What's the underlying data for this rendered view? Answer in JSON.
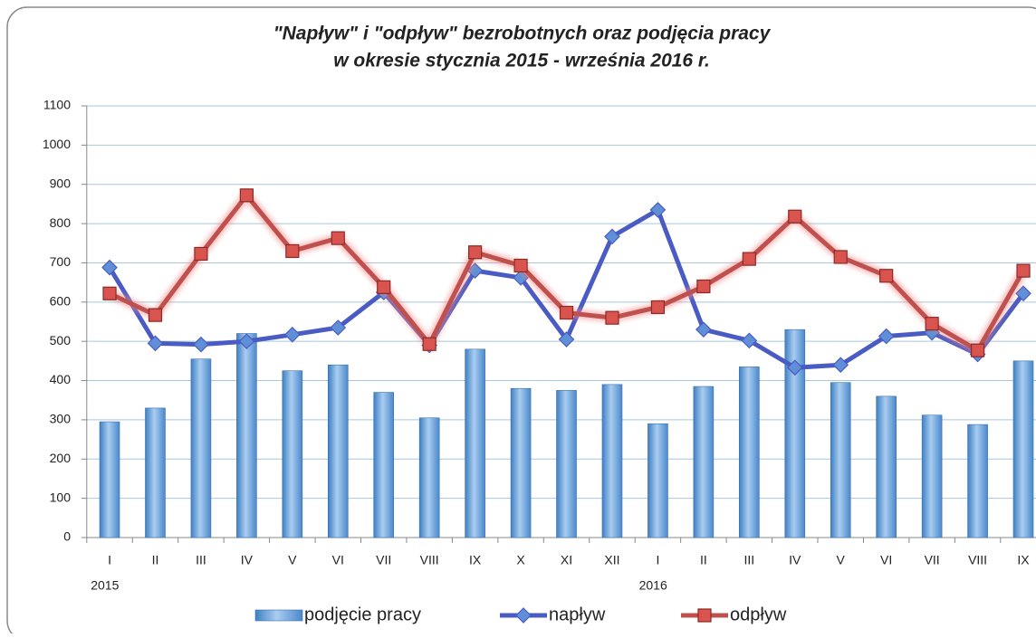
{
  "chart_data": {
    "type": "bar_line",
    "title": [
      "\"Napływ\" i  \"odpływ\" bezrobotnych oraz podjęcia pracy",
      "w okresie  stycznia 2015   - września 2016 r."
    ],
    "categories": [
      "I",
      "II",
      "III",
      "IV",
      "V",
      "VI",
      "VII",
      "VIII",
      "IX",
      "X",
      "XI",
      "XII",
      "I",
      "II",
      "III",
      "IV",
      "V",
      "VI",
      "VII",
      "VIII",
      "IX"
    ],
    "years": [
      "2015",
      null,
      null,
      null,
      null,
      null,
      null,
      null,
      null,
      null,
      null,
      null,
      "2016",
      null,
      null,
      null,
      null,
      null,
      null,
      null,
      null
    ],
    "series": [
      {
        "name": "podjęcie pracy",
        "kind": "bar",
        "color": "#6a9fd8",
        "values": [
          295,
          330,
          455,
          520,
          425,
          440,
          370,
          305,
          480,
          380,
          375,
          390,
          290,
          385,
          435,
          530,
          395,
          360,
          312,
          288,
          450
        ]
      },
      {
        "name": "napływ",
        "kind": "line",
        "marker": "diamond",
        "color": "#4a5cc4",
        "values": [
          688,
          495,
          492,
          500,
          517,
          535,
          625,
          490,
          680,
          662,
          505,
          767,
          835,
          530,
          502,
          433,
          440,
          513,
          522,
          467,
          622
        ]
      },
      {
        "name": "odpływ",
        "kind": "line",
        "marker": "square",
        "color": "#c0504d",
        "values": [
          622,
          567,
          723,
          872,
          730,
          763,
          638,
          493,
          727,
          693,
          573,
          560,
          587,
          640,
          710,
          818,
          715,
          667,
          545,
          477,
          680
        ]
      }
    ],
    "ylim": [
      0,
      1100
    ],
    "yticks": [
      0,
      100,
      200,
      300,
      400,
      500,
      600,
      700,
      800,
      900,
      1000,
      1100
    ],
    "grid": true,
    "legend": "bottom"
  }
}
